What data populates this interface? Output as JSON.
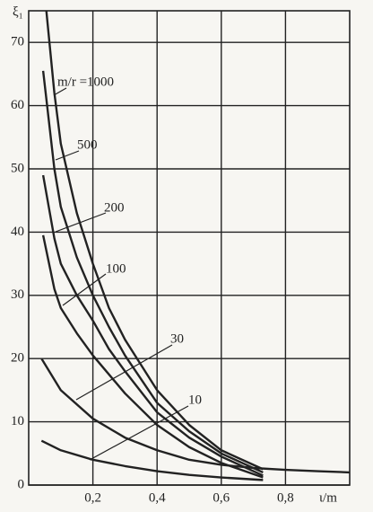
{
  "chart_data": {
    "type": "line",
    "y_label": "ξ₁",
    "x_label": "ι/m",
    "xlim": [
      0,
      1.0
    ],
    "ylim": [
      0,
      75
    ],
    "xticks": [
      {
        "value": 0.2,
        "label": "0,2"
      },
      {
        "value": 0.4,
        "label": "0,4"
      },
      {
        "value": 0.6,
        "label": "0,6"
      },
      {
        "value": 0.8,
        "label": "0,8"
      }
    ],
    "yticks": [
      0,
      10,
      20,
      30,
      40,
      50,
      60,
      70
    ],
    "grid": true,
    "series": [
      {
        "name": "m/r =1000",
        "color": "#222222",
        "x": [
          0.055,
          0.08,
          0.1,
          0.15,
          0.2,
          0.25,
          0.3,
          0.4,
          0.5,
          0.6,
          0.73
        ],
        "values": [
          75,
          62,
          54,
          43,
          35,
          28,
          23,
          15,
          9.5,
          5.5,
          2.5
        ]
      },
      {
        "name": "500",
        "color": "#222222",
        "x": [
          0.045,
          0.08,
          0.1,
          0.15,
          0.2,
          0.25,
          0.3,
          0.4,
          0.5,
          0.6,
          0.73
        ],
        "values": [
          65.5,
          50,
          44,
          36,
          30,
          25,
          20.5,
          13,
          8.5,
          5,
          2
        ]
      },
      {
        "name": "200",
        "color": "#222222",
        "x": [
          0.045,
          0.08,
          0.1,
          0.15,
          0.2,
          0.25,
          0.3,
          0.4,
          0.5,
          0.6,
          0.73
        ],
        "values": [
          49,
          39,
          35,
          30,
          26,
          21.5,
          18,
          11.5,
          7.5,
          4.5,
          1.5
        ]
      },
      {
        "name": "100",
        "color": "#222222",
        "x": [
          0.045,
          0.08,
          0.1,
          0.15,
          0.2,
          0.25,
          0.3,
          0.4,
          0.5,
          0.6,
          0.73
        ],
        "values": [
          39.5,
          31,
          28,
          24,
          20.5,
          17.5,
          14.5,
          9.5,
          6,
          3.5,
          1.2
        ]
      },
      {
        "name": "30",
        "color": "#222222",
        "x": [
          0.04,
          0.1,
          0.2,
          0.3,
          0.4,
          0.5,
          0.6,
          0.7,
          0.8,
          0.9,
          1.0
        ],
        "values": [
          20,
          15,
          10.5,
          7.5,
          5.5,
          4,
          3.2,
          2.7,
          2.4,
          2.2,
          2
        ]
      },
      {
        "name": "10",
        "color": "#222222",
        "x": [
          0.04,
          0.1,
          0.2,
          0.3,
          0.4,
          0.5,
          0.6,
          0.73
        ],
        "values": [
          7,
          5.5,
          4,
          3,
          2.2,
          1.6,
          1.2,
          0.8
        ]
      }
    ]
  }
}
